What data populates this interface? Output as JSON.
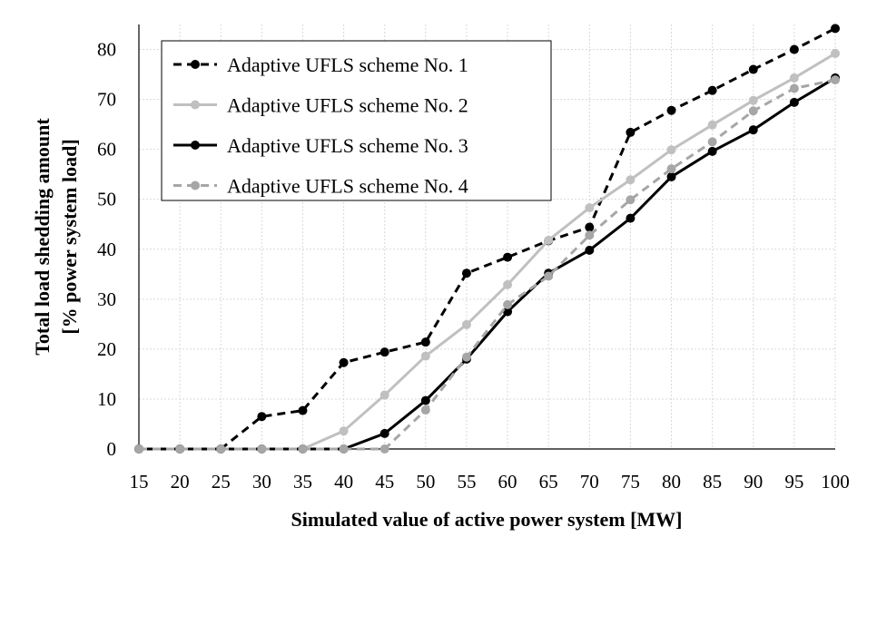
{
  "chart_data": {
    "type": "line",
    "xlabel": "Simulated value of active power system [MW]",
    "ylabel_line1": "Total load shedding amount",
    "ylabel_line2": "[% power system load]",
    "x": [
      15,
      20,
      25,
      30,
      35,
      40,
      45,
      50,
      55,
      60,
      65,
      70,
      75,
      80,
      85,
      90,
      95,
      100
    ],
    "xlim": [
      15,
      100
    ],
    "ylim": [
      0,
      85
    ],
    "yticks": [
      0,
      10,
      20,
      30,
      40,
      50,
      60,
      70,
      80
    ],
    "grid": true,
    "legend_position": "top-left",
    "series": [
      {
        "name": "Adaptive UFLS scheme No. 1",
        "color": "#000000",
        "dashed": true,
        "values": [
          0,
          0,
          0,
          6.5,
          7.7,
          17.3,
          19.4,
          21.4,
          35.2,
          38.4,
          41.7,
          44.4,
          63.4,
          67.8,
          71.8,
          76.0,
          80.0,
          84.2
        ]
      },
      {
        "name": "Adaptive UFLS scheme No. 2",
        "color": "#c0c0c0",
        "dashed": false,
        "values": [
          0,
          0,
          0,
          0,
          0,
          3.6,
          10.8,
          18.6,
          24.9,
          32.9,
          41.8,
          48.3,
          53.9,
          59.9,
          64.9,
          69.8,
          74.3,
          79.2
        ]
      },
      {
        "name": "Adaptive UFLS scheme No. 3",
        "color": "#000000",
        "dashed": false,
        "values": [
          0,
          0,
          0,
          0,
          0,
          0,
          3.1,
          9.7,
          18.0,
          27.5,
          35.2,
          39.8,
          46.2,
          54.5,
          59.6,
          63.9,
          69.4,
          74.3
        ]
      },
      {
        "name": "Adaptive UFLS scheme No. 4",
        "color": "#a6a6a6",
        "dashed": true,
        "values": [
          0,
          0,
          0,
          0,
          0,
          0,
          0,
          7.8,
          18.4,
          28.9,
          34.6,
          42.8,
          49.9,
          56.1,
          61.5,
          67.7,
          72.2,
          73.9
        ]
      }
    ]
  }
}
